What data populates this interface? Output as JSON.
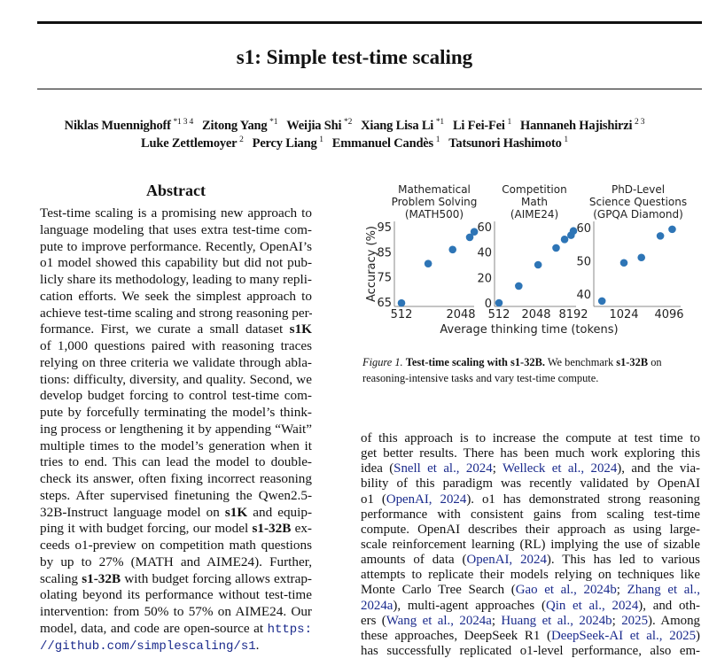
{
  "title": "s1: Simple test-time scaling",
  "authors": [
    [
      {
        "name": "Niklas Muennighoff",
        "aff": "*1 3 4"
      },
      {
        "name": "Zitong Yang",
        "aff": "*1"
      },
      {
        "name": "Weijia Shi",
        "aff": "*2"
      },
      {
        "name": "Xiang Lisa Li",
        "aff": "*1"
      },
      {
        "name": "Li Fei-Fei",
        "aff": "1"
      },
      {
        "name": "Hannaneh Hajishirzi",
        "aff": "2 3"
      }
    ],
    [
      {
        "name": "Luke Zettlemoyer",
        "aff": "2"
      },
      {
        "name": "Percy Liang",
        "aff": "1"
      },
      {
        "name": "Emmanuel Candès",
        "aff": "1"
      },
      {
        "name": "Tatsunori Hashimoto",
        "aff": "1"
      }
    ]
  ],
  "abstract_heading": "Abstract",
  "abstract_lines": [
    [
      [
        "Test-time scaling is a promising new approach to"
      ]
    ],
    [
      [
        "language modeling that uses extra test-time com-"
      ]
    ],
    [
      [
        "pute to improve performance. Recently, OpenAI’s"
      ]
    ],
    [
      [
        "o1 model showed this capability but did not pub-"
      ]
    ],
    [
      [
        "licly share its methodology, leading to many repli-"
      ]
    ],
    [
      [
        "cation efforts. We seek the simplest approach to"
      ]
    ],
    [
      [
        "achieve test-time scaling and strong reasoning per-"
      ]
    ],
    [
      [
        "formance. First, we curate a small dataset "
      ],
      [
        "s1K",
        "b"
      ]
    ],
    [
      [
        "of 1,000 questions paired with reasoning traces"
      ]
    ],
    [
      [
        "relying on three criteria we validate through abla-"
      ]
    ],
    [
      [
        "tions: difficulty, diversity, and quality. Second, we"
      ]
    ],
    [
      [
        "develop budget forcing to control test-time com-"
      ]
    ],
    [
      [
        "pute by forcefully terminating the model’s think-"
      ]
    ],
    [
      [
        "ing process or lengthening it by appending “Wait”"
      ]
    ],
    [
      [
        "multiple times to the model’s generation when it"
      ]
    ],
    [
      [
        "tries to end. This can lead the model to double-"
      ]
    ],
    [
      [
        "check its answer, often fixing incorrect reasoning"
      ]
    ],
    [
      [
        "steps. After supervised finetuning the Qwen2.5-"
      ]
    ],
    [
      [
        "32B-Instruct language model on "
      ],
      [
        "s1K",
        "b"
      ],
      [
        " and equip-"
      ]
    ],
    [
      [
        "ping it with budget forcing, our model "
      ],
      [
        "s1-32B",
        "b"
      ],
      [
        " ex-"
      ]
    ],
    [
      [
        "ceeds o1-preview on competition math questions"
      ]
    ],
    [
      [
        "by up to 27% (MATH and AIME24). Further,"
      ]
    ],
    [
      [
        "scaling "
      ],
      [
        "s1-32B",
        "b"
      ],
      [
        " with budget forcing allows extrap-"
      ]
    ],
    [
      [
        "olating beyond its performance without test-time"
      ]
    ],
    [
      [
        "intervention: from 50% to 57% on AIME24. Our"
      ]
    ],
    [
      [
        "model, data, and code are open-source at "
      ],
      [
        "https:",
        "m"
      ]
    ],
    [
      [
        "//github.com/simplescaling/s1",
        "m"
      ],
      [
        "."
      ]
    ]
  ],
  "body_lines": [
    [
      [
        "of this approach is to increase the compute at test time to"
      ]
    ],
    [
      [
        "get better results. There has been much work exploring this"
      ]
    ],
    [
      [
        "idea ("
      ],
      [
        "Snell et al., 2024",
        "l"
      ],
      [
        "; "
      ],
      [
        "Welleck et al., 2024",
        "l"
      ],
      [
        "), and the via-"
      ]
    ],
    [
      [
        "bility of this paradigm was recently validated by OpenAI"
      ]
    ],
    [
      [
        "o1 ("
      ],
      [
        "OpenAI, 2024",
        "l"
      ],
      [
        "). o1 has demonstrated strong reasoning"
      ]
    ],
    [
      [
        "performance with consistent gains from scaling test-time"
      ]
    ],
    [
      [
        "compute. OpenAI describes their approach as using large-"
      ]
    ],
    [
      [
        "scale reinforcement learning (RL) implying the use of sizable"
      ]
    ],
    [
      [
        "amounts of data ("
      ],
      [
        "OpenAI, 2024",
        "l"
      ],
      [
        "). This has led to various"
      ]
    ],
    [
      [
        "attempts to replicate their models relying on techniques like"
      ]
    ],
    [
      [
        "Monte Carlo Tree Search ("
      ],
      [
        "Gao et al., 2024b",
        "l"
      ],
      [
        "; "
      ],
      [
        "Zhang et al.,",
        "l"
      ]
    ],
    [
      [
        "2024a",
        "l"
      ],
      [
        "), multi-agent approaches ("
      ],
      [
        "Qin et al., 2024",
        "l"
      ],
      [
        "), and oth-"
      ]
    ],
    [
      [
        "ers ("
      ],
      [
        "Wang et al., 2024a",
        "l"
      ],
      [
        "; "
      ],
      [
        "Huang et al., 2024b",
        "l"
      ],
      [
        "; "
      ],
      [
        "2025",
        "l"
      ],
      [
        "). Among"
      ]
    ],
    [
      [
        "these approaches, DeepSeek R1 ("
      ],
      [
        "DeepSeek-AI et al., 2025",
        "l"
      ],
      [
        ")"
      ]
    ],
    [
      [
        "has successfully replicated o1-level performance, also em-"
      ]
    ]
  ],
  "caption": {
    "label": "Figure 1.",
    "bold": "Test-time scaling with s1-32B.",
    "text1": " We benchmark ",
    "bold2": "s1-32B",
    "text2": " on reasoning-intensive tasks and vary test-time compute."
  },
  "chart_data": {
    "type": "scatter",
    "xlabel": "Average thinking time (tokens)",
    "ylabel": "Accuracy (%)",
    "x_scale": "log2",
    "marker_color": "#2e75b6",
    "panels": [
      {
        "title": [
          "Mathematical",
          "Problem Solving",
          "(MATH500)"
        ],
        "xticks": [
          512,
          2048
        ],
        "yticks": [
          65,
          75,
          85,
          95
        ],
        "ylim": [
          64,
          95
        ],
        "x": [
          512,
          955,
          1690,
          2520,
          2800
        ],
        "y": [
          64.6,
          80.3,
          85.9,
          90.8,
          93.0
        ]
      },
      {
        "title": [
          "Competition",
          "Math",
          "(AIME24)"
        ],
        "xticks": [
          512,
          2048,
          8192
        ],
        "yticks": [
          0,
          20,
          40,
          60
        ],
        "ylim": [
          0,
          60
        ],
        "x": [
          512,
          1070,
          2200,
          4300,
          5900,
          7500,
          8200
        ],
        "y": [
          0,
          13.3,
          30.0,
          43.3,
          50.0,
          53.3,
          56.7
        ]
      },
      {
        "title": [
          "PhD-Level",
          "Science Questions",
          "(GPQA Diamond)"
        ],
        "xticks": [
          1024,
          4096
        ],
        "yticks": [
          40,
          50,
          60
        ],
        "ylim": [
          37,
          60
        ],
        "x": [
          522,
          1024,
          1750,
          3130,
          4500
        ],
        "y": [
          37.9,
          49.4,
          51.0,
          57.5,
          59.5
        ]
      }
    ]
  }
}
